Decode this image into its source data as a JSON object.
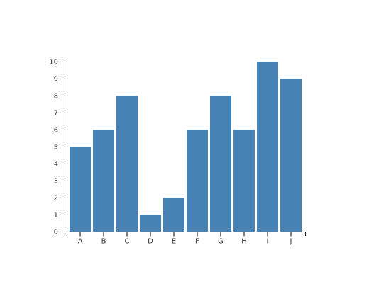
{
  "chart_data": {
    "type": "bar",
    "categories": [
      "A",
      "B",
      "C",
      "D",
      "E",
      "F",
      "G",
      "H",
      "I",
      "J"
    ],
    "values": [
      5,
      6,
      8,
      1,
      2,
      6,
      8,
      6,
      10,
      9
    ],
    "color": "#4682b4",
    "ylim": [
      0,
      10
    ],
    "yticks": [
      0,
      1,
      2,
      3,
      4,
      5,
      6,
      7,
      8,
      9,
      10
    ],
    "grid": false
  }
}
